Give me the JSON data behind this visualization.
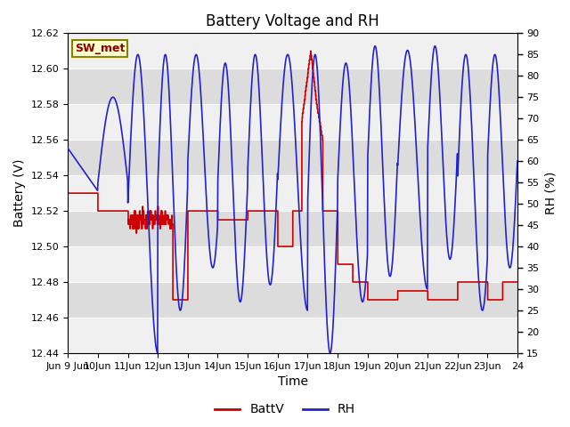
{
  "title": "Battery Voltage and RH",
  "xlabel": "Time",
  "ylabel_left": "Battery (V)",
  "ylabel_right": "RH (%)",
  "label_box": "SW_met",
  "legend_entries": [
    "BattV",
    "RH"
  ],
  "legend_colors": [
    "#cc0000",
    "#2222cc"
  ],
  "batt_color": "#cc0000",
  "rh_color": "#2222cc",
  "ylim_left": [
    12.44,
    12.62
  ],
  "ylim_right": [
    15,
    90
  ],
  "yticks_left": [
    12.44,
    12.46,
    12.48,
    12.5,
    12.52,
    12.54,
    12.56,
    12.58,
    12.6,
    12.62
  ],
  "yticks_right": [
    15,
    20,
    25,
    30,
    35,
    40,
    45,
    50,
    55,
    60,
    65,
    70,
    75,
    80,
    85,
    90
  ],
  "xlim": [
    0,
    15
  ],
  "xtick_labels": [
    "Jun 9 Jun",
    "10Jun",
    "11Jun",
    "12Jun",
    "13Jun",
    "14Jun",
    "15Jun",
    "16Jun",
    "17Jun",
    "18Jun",
    "19Jun",
    "20Jun",
    "21Jun",
    "22Jun",
    "23Jun",
    "24"
  ],
  "plot_bg_light": "#f0f0f0",
  "plot_bg_dark": "#dcdcdc",
  "fig_bg_color": "#ffffff",
  "grid_color": "#ffffff",
  "title_fontsize": 12,
  "axis_fontsize": 10,
  "tick_fontsize": 8
}
